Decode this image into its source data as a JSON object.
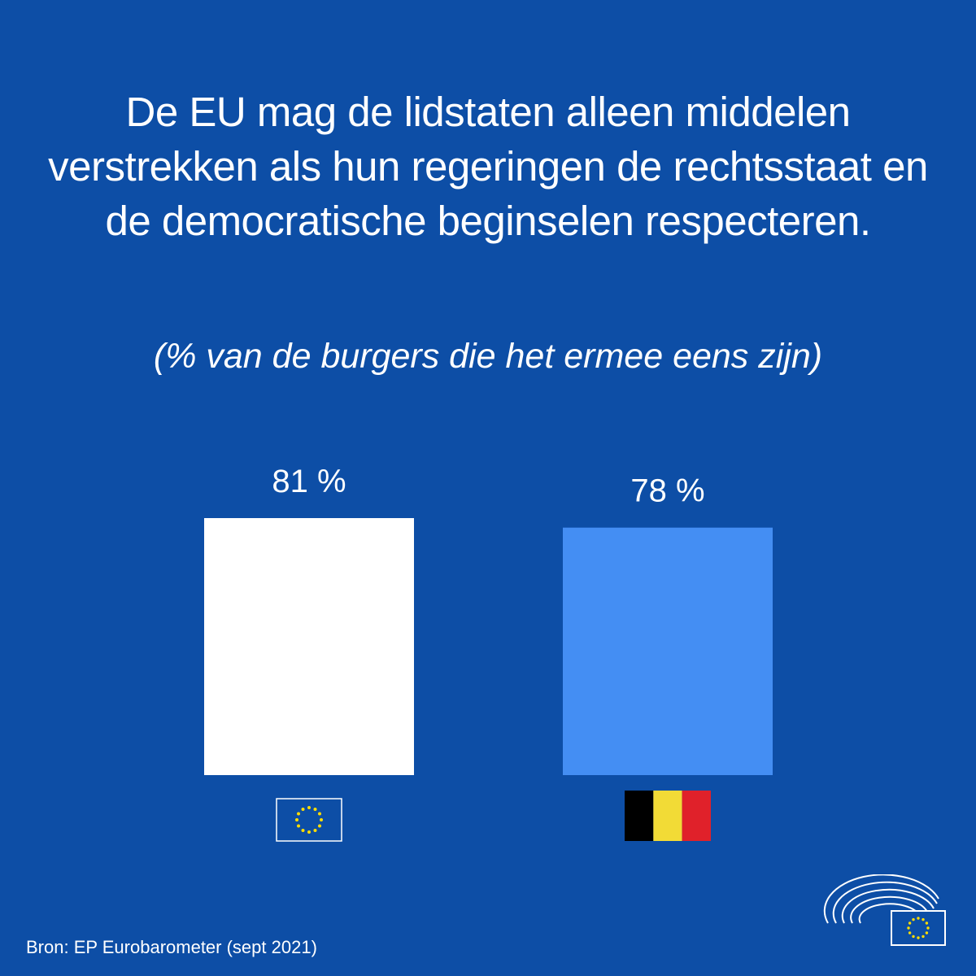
{
  "title": "De EU mag de lidstaten alleen middelen verstrekken als hun regeringen de rechtsstaat en de democratische beginselen respecteren.",
  "subtitle": "(% van de burgers die het ermee eens zijn)",
  "source": "Bron: EP Eurobarometer (sept 2021)",
  "chart_data": {
    "type": "bar",
    "categories": [
      "eu-flag-icon",
      "belgium-flag-icon"
    ],
    "values": [
      81,
      78
    ],
    "value_labels": [
      "81 %",
      "78 %"
    ],
    "colors": [
      "#ffffff",
      "#448ef3"
    ],
    "ylim": [
      0,
      100
    ],
    "grid": false,
    "xlabel": "",
    "ylabel": ""
  },
  "colors": {
    "background": "#0d4ea6",
    "eu_flag_blue": "#0d4ea6",
    "eu_star_yellow": "#ffdd00",
    "belgium_black": "#000000",
    "belgium_yellow": "#f2db36",
    "belgium_red": "#e0212a"
  },
  "icons": {
    "logo": "european-parliament-logo-icon"
  }
}
